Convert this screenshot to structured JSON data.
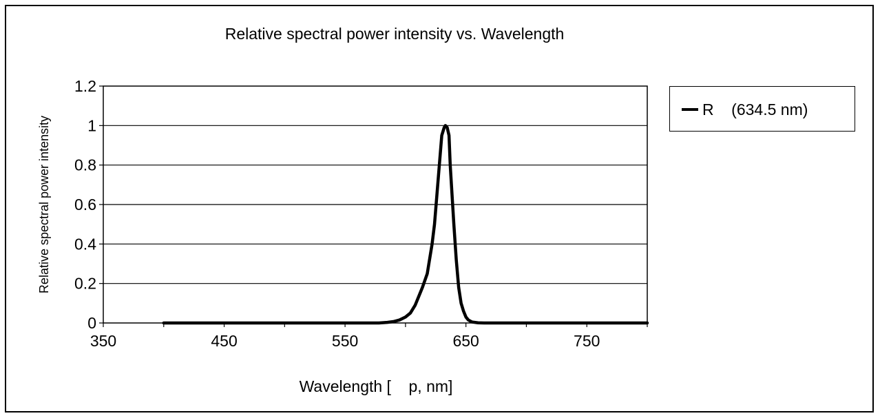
{
  "chart_data": {
    "type": "line",
    "title": "Relative spectral power intensity vs. Wavelength",
    "xlabel": "Wavelength [    p, nm]",
    "ylabel": "Relative spectral power intensity",
    "xlim": [
      350,
      800
    ],
    "ylim": [
      0,
      1.2
    ],
    "x_ticks": [
      350,
      450,
      550,
      650,
      750
    ],
    "y_ticks": [
      0,
      0.2,
      0.4,
      0.6,
      0.8,
      1,
      1.2
    ],
    "grid": "horizontal",
    "legend_position": "right",
    "series": [
      {
        "name": "R    (634.5 nm)",
        "color": "#000000",
        "x": [
          400,
          450,
          500,
          550,
          578,
          585,
          590,
          595,
          600,
          604,
          608,
          612,
          614,
          618,
          622,
          624,
          626,
          628,
          630,
          632,
          633,
          634.5,
          636,
          637,
          638,
          640,
          642,
          644,
          646,
          648,
          650,
          652,
          655,
          660,
          665,
          670,
          700,
          750,
          800
        ],
        "y": [
          0,
          0,
          0,
          0,
          0,
          0.003,
          0.007,
          0.015,
          0.03,
          0.05,
          0.09,
          0.15,
          0.18,
          0.25,
          0.4,
          0.5,
          0.65,
          0.8,
          0.95,
          0.99,
          1.0,
          0.99,
          0.95,
          0.8,
          0.7,
          0.5,
          0.32,
          0.18,
          0.1,
          0.06,
          0.03,
          0.015,
          0.005,
          0.001,
          0,
          0,
          0,
          0,
          0
        ]
      }
    ]
  }
}
